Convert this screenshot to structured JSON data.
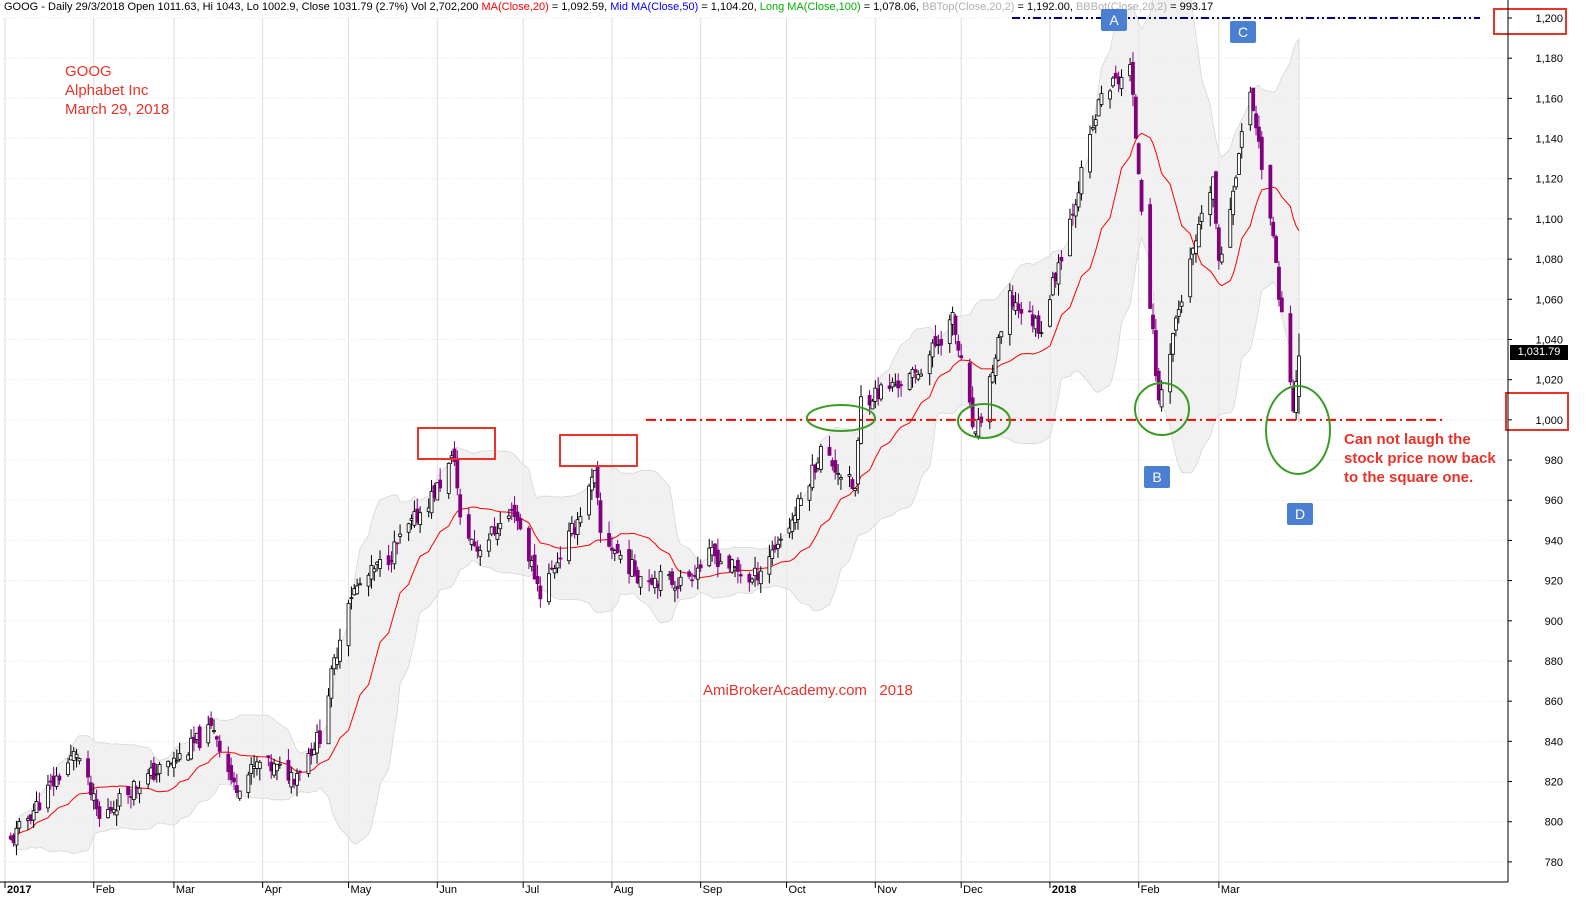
{
  "header": {
    "symbol": "GOOG",
    "period": "Daily 29/3/2018",
    "open": "Open 1011.63,",
    "hi": "Hi 1043,",
    "lo": "Lo 1002.9,",
    "close": "Close 1031.79 (2.7%)",
    "vol": "Vol 2,702,200",
    "ma20_label": "MA(Close,20)",
    "ma20_value": "= 1,092.59,",
    "ma50_label": "Mid MA(Close,50)",
    "ma50_value": "= 1,104.20,",
    "ma100_label": "Long MA(Close,100)",
    "ma100_value": "= 1,078.06,",
    "bbtop_label": "BBTop(Close,20,2)",
    "bbtop_value": "= 1,192.00,",
    "bbbot_label": "BBBot(Close,20,2)",
    "bbbot_value": "= 993.17"
  },
  "annotations": {
    "title_line1": "GOOG",
    "title_line2": "Alphabet Inc",
    "title_line3": "March 29, 2018",
    "watermark": "AmiBrokerAcademy.com   2018",
    "note_line1": "Can not laugh the",
    "note_line2": "stock price now back",
    "note_line3": "to the square one.",
    "badge_a": "A",
    "badge_b": "B",
    "badge_c": "C",
    "badge_d": "D",
    "last_price_tag": "1,031.79"
  },
  "colors": {
    "up_candle": "#000000",
    "down_candle": "#800080",
    "ma20": "#ff0000",
    "bollinger_band": "#e6e6e6",
    "support_line": "#ff0000",
    "resistance_line": "#000080",
    "annotation_red": "#e8332a",
    "circle_green": "#3a9d23",
    "badge_blue": "#4a7fd2",
    "ma50_text": "#0000ff",
    "ma100_text": "#00b000",
    "bb_text": "#b0b0b0"
  },
  "chart_data": {
    "type": "candlestick",
    "title": "GOOG",
    "ylim": [
      770,
      1200
    ],
    "y_ticks": [
      "780",
      "800",
      "820",
      "840",
      "860",
      "880",
      "900",
      "920",
      "940",
      "960",
      "980",
      "1,000",
      "1,020",
      "1,040",
      "1,060",
      "1,080",
      "1,100",
      "1,120",
      "1,140",
      "1,160",
      "1,180",
      "1,200"
    ],
    "x_ticks": [
      "2017",
      "Feb",
      "Mar",
      "Apr",
      "May",
      "Jun",
      "Jul",
      "Aug",
      "Sep",
      "Oct",
      "Nov",
      "Dec",
      "2018",
      "Feb",
      "Mar"
    ],
    "x_tick_bold": [
      "2017",
      "2018"
    ],
    "support_level": 1000,
    "resistance_level": 1200,
    "close_anchors": [
      {
        "date": "2017-01-03",
        "close": 790
      },
      {
        "date": "2017-01-11",
        "close": 806
      },
      {
        "date": "2017-01-26",
        "close": 835
      },
      {
        "date": "2017-02-03",
        "close": 801
      },
      {
        "date": "2017-02-15",
        "close": 818
      },
      {
        "date": "2017-03-01",
        "close": 830
      },
      {
        "date": "2017-03-15",
        "close": 847
      },
      {
        "date": "2017-03-22",
        "close": 817
      },
      {
        "date": "2017-03-31",
        "close": 829
      },
      {
        "date": "2017-04-12",
        "close": 823
      },
      {
        "date": "2017-04-21",
        "close": 843
      },
      {
        "date": "2017-04-25",
        "close": 872
      },
      {
        "date": "2017-05-01",
        "close": 912
      },
      {
        "date": "2017-05-15",
        "close": 932
      },
      {
        "date": "2017-06-01",
        "close": 966
      },
      {
        "date": "2017-06-07",
        "close": 982
      },
      {
        "date": "2017-06-09",
        "close": 949
      },
      {
        "date": "2017-06-15",
        "close": 936
      },
      {
        "date": "2017-06-28",
        "close": 955
      },
      {
        "date": "2017-07-07",
        "close": 914
      },
      {
        "date": "2017-07-19",
        "close": 947
      },
      {
        "date": "2017-07-26",
        "close": 972
      },
      {
        "date": "2017-07-28",
        "close": 943
      },
      {
        "date": "2017-08-10",
        "close": 923
      },
      {
        "date": "2017-08-25",
        "close": 919
      },
      {
        "date": "2017-09-05",
        "close": 933
      },
      {
        "date": "2017-09-19",
        "close": 920
      },
      {
        "date": "2017-10-03",
        "close": 950
      },
      {
        "date": "2017-10-13",
        "close": 985
      },
      {
        "date": "2017-10-25",
        "close": 965
      },
      {
        "date": "2017-10-27",
        "close": 1010
      },
      {
        "date": "2017-11-15",
        "close": 1022
      },
      {
        "date": "2017-11-28",
        "close": 1050
      },
      {
        "date": "2017-12-06",
        "close": 990
      },
      {
        "date": "2017-12-18",
        "close": 1060
      },
      {
        "date": "2017-12-29",
        "close": 1046
      },
      {
        "date": "2018-01-09",
        "close": 1105
      },
      {
        "date": "2018-01-19",
        "close": 1162
      },
      {
        "date": "2018-01-29",
        "close": 1175
      },
      {
        "date": "2018-02-08",
        "close": 1008
      },
      {
        "date": "2018-02-14",
        "close": 1050
      },
      {
        "date": "2018-02-27",
        "close": 1120
      },
      {
        "date": "2018-03-01",
        "close": 1075
      },
      {
        "date": "2018-03-12",
        "close": 1165
      },
      {
        "date": "2018-03-19",
        "close": 1100
      },
      {
        "date": "2018-03-27",
        "close": 1005
      },
      {
        "date": "2018-03-29",
        "close": 1031.79
      }
    ],
    "last_bar": {
      "date": "2018-03-29",
      "open": 1011.63,
      "high": 1043,
      "low": 1002.9,
      "close": 1031.79
    },
    "ma20_last": 1092.59,
    "bb_top_last": 1192.0,
    "bb_bot_last": 993.17
  }
}
